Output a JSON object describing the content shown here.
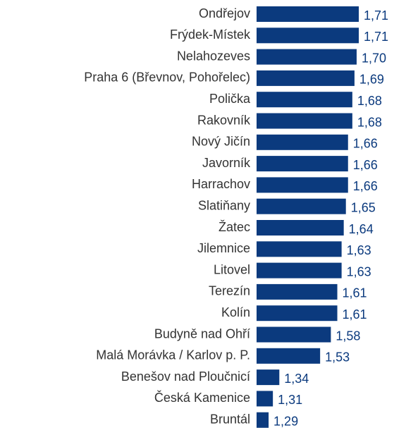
{
  "chart_data": {
    "type": "barh",
    "categories": [
      "Ondřejov",
      "Frýdek-Místek",
      "Nelahozeves",
      "Praha 6 (Břevnov, Pohořelec)",
      "Polička",
      "Rakovník",
      "Nový Jičín",
      "Javorník",
      "Harrachov",
      "Slatiňany",
      "Žatec",
      "Jilemnice",
      "Litovel",
      "Terezín",
      "Kolín",
      "Budyně nad Ohří",
      "Malá Morávka / Karlov p. P.",
      "Benešov nad Ploučnicí",
      "Česká Kamenice",
      "Bruntál"
    ],
    "values": [
      1.71,
      1.71,
      1.7,
      1.69,
      1.68,
      1.68,
      1.66,
      1.66,
      1.66,
      1.65,
      1.64,
      1.63,
      1.63,
      1.61,
      1.61,
      1.58,
      1.53,
      1.34,
      1.31,
      1.29
    ],
    "value_labels": [
      "1,71",
      "1,71",
      "1,70",
      "1,69",
      "1,68",
      "1,68",
      "1,66",
      "1,66",
      "1,66",
      "1,65",
      "1,64",
      "1,63",
      "1,63",
      "1,61",
      "1,61",
      "1,58",
      "1,53",
      "1,34",
      "1,31",
      "1,29"
    ],
    "color": "#0b3a7e",
    "xlim": [
      1.234,
      1.72
    ]
  }
}
